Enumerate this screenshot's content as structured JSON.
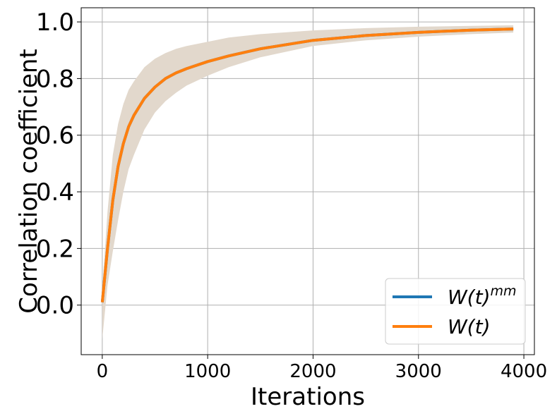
{
  "chart_data": {
    "type": "line",
    "xlabel": "Iterations",
    "ylabel": "Correlation coefficient",
    "xlim": [
      -200,
      4100
    ],
    "ylim": [
      -0.175,
      1.05
    ],
    "x_ticks": [
      0,
      1000,
      2000,
      3000,
      4000
    ],
    "x_tick_labels": [
      "0",
      "1000",
      "2000",
      "3000",
      "4000"
    ],
    "y_ticks": [
      0.0,
      0.2,
      0.4,
      0.6,
      0.8,
      1.0
    ],
    "y_tick_labels": [
      "0.0",
      "0.2",
      "0.4",
      "0.6",
      "0.8",
      "1.0"
    ],
    "grid": true,
    "legend_position": "bottom-right",
    "x": [
      0,
      50,
      100,
      150,
      200,
      250,
      300,
      400,
      500,
      600,
      700,
      800,
      1000,
      1200,
      1500,
      2000,
      2500,
      3000,
      3500,
      3900
    ],
    "series": [
      {
        "name": "W(t)^mm",
        "name_base": "W(t)",
        "name_sup": "mm",
        "color": "#1f77b4",
        "values": [
          0.01,
          0.2,
          0.37,
          0.49,
          0.57,
          0.63,
          0.67,
          0.73,
          0.77,
          0.8,
          0.82,
          0.835,
          0.86,
          0.88,
          0.905,
          0.935,
          0.952,
          0.963,
          0.971,
          0.975
        ]
      },
      {
        "name": "W(t)",
        "color": "#ff7f0e",
        "values": [
          0.01,
          0.2,
          0.37,
          0.49,
          0.57,
          0.63,
          0.67,
          0.73,
          0.77,
          0.8,
          0.82,
          0.835,
          0.86,
          0.88,
          0.905,
          0.935,
          0.952,
          0.963,
          0.971,
          0.975
        ]
      }
    ],
    "band": {
      "color": "#e2d8cc",
      "lower": [
        -0.12,
        0.07,
        0.19,
        0.3,
        0.4,
        0.48,
        0.53,
        0.62,
        0.68,
        0.72,
        0.75,
        0.775,
        0.81,
        0.84,
        0.875,
        0.915,
        0.935,
        0.948,
        0.957,
        0.962
      ],
      "upper": [
        0.06,
        0.33,
        0.53,
        0.64,
        0.71,
        0.76,
        0.79,
        0.84,
        0.87,
        0.89,
        0.905,
        0.915,
        0.93,
        0.945,
        0.957,
        0.97,
        0.978,
        0.983,
        0.986,
        0.988
      ]
    }
  }
}
